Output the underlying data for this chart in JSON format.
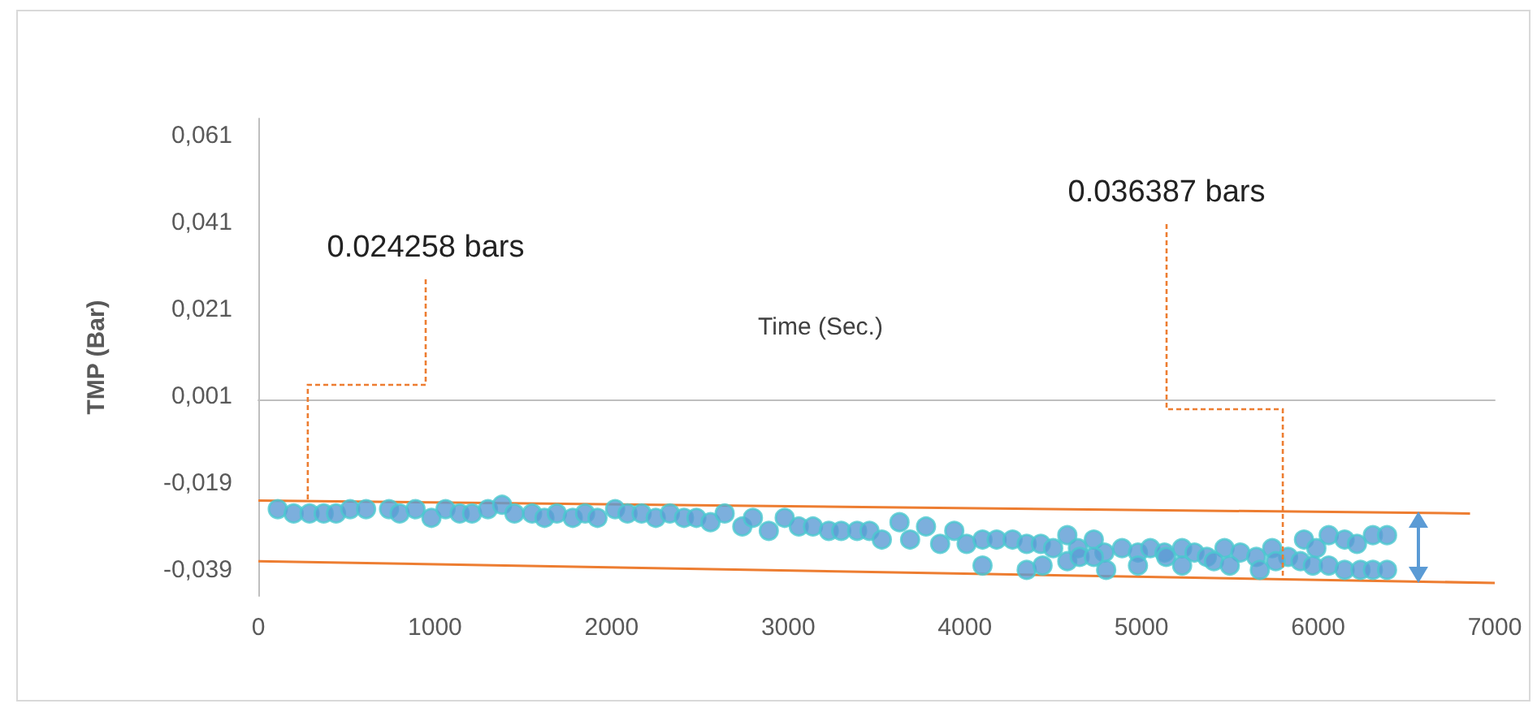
{
  "chart_data": {
    "type": "scatter",
    "xlabel": "Time (Sec.)",
    "ylabel": "TMP (Bar)",
    "xlim": [
      0,
      7000
    ],
    "xticks": [
      0,
      1000,
      2000,
      3000,
      4000,
      5000,
      6000,
      7000
    ],
    "ylim": [
      -0.045,
      0.065
    ],
    "yticks": [
      {
        "value": -0.039,
        "label": "-0,039"
      },
      {
        "value": -0.019,
        "label": "-0,019"
      },
      {
        "value": 0.001,
        "label": "0,001"
      },
      {
        "value": 0.021,
        "label": "0,021"
      },
      {
        "value": 0.041,
        "label": "0,041"
      },
      {
        "value": 0.061,
        "label": "0,061"
      }
    ],
    "grid": false,
    "series": [
      {
        "color": "#5b9bd5",
        "marker": "circle",
        "x": [
          110,
          200,
          290,
          370,
          440,
          520,
          610,
          740,
          800,
          890,
          980,
          1060,
          1140,
          1210,
          1300,
          1380,
          1450,
          1550,
          1620,
          1690,
          1780,
          1850,
          1920,
          2020,
          2090,
          2170,
          2250,
          2330,
          2410,
          2480,
          2560,
          2640,
          2740,
          2800,
          2890,
          2980,
          3060,
          3140,
          3230,
          3300,
          3390,
          3460,
          3530,
          3630,
          3690,
          3780,
          3860,
          3940,
          4010,
          4100,
          4180,
          4270,
          4350,
          4430,
          4500,
          4580,
          4640,
          4730,
          4790,
          4890,
          4980,
          5050,
          5130,
          5230,
          5300,
          5370,
          5470,
          5560,
          5650,
          5740,
          5830,
          5920,
          5990,
          6060,
          6150,
          6220,
          6310,
          6390,
          4100,
          4350,
          4440,
          4580,
          4650,
          4730,
          4800,
          4980,
          5140,
          5230,
          5410,
          5500,
          5670,
          5760,
          5900,
          5970,
          6060,
          6150,
          6240,
          6310,
          6390
        ],
        "values": [
          -0.025,
          -0.026,
          -0.026,
          -0.026,
          -0.026,
          -0.025,
          -0.025,
          -0.025,
          -0.026,
          -0.025,
          -0.027,
          -0.025,
          -0.026,
          -0.026,
          -0.025,
          -0.024,
          -0.026,
          -0.026,
          -0.027,
          -0.026,
          -0.027,
          -0.026,
          -0.027,
          -0.025,
          -0.026,
          -0.026,
          -0.027,
          -0.026,
          -0.027,
          -0.027,
          -0.028,
          -0.026,
          -0.029,
          -0.027,
          -0.03,
          -0.027,
          -0.029,
          -0.029,
          -0.03,
          -0.03,
          -0.03,
          -0.03,
          -0.032,
          -0.028,
          -0.032,
          -0.029,
          -0.033,
          -0.03,
          -0.033,
          -0.032,
          -0.032,
          -0.032,
          -0.033,
          -0.033,
          -0.034,
          -0.031,
          -0.034,
          -0.032,
          -0.035,
          -0.034,
          -0.035,
          -0.034,
          -0.035,
          -0.034,
          -0.035,
          -0.036,
          -0.034,
          -0.035,
          -0.036,
          -0.034,
          -0.036,
          -0.032,
          -0.034,
          -0.031,
          -0.032,
          -0.033,
          -0.031,
          -0.031,
          -0.038,
          -0.039,
          -0.038,
          -0.037,
          -0.036,
          -0.036,
          -0.039,
          -0.038,
          -0.036,
          -0.038,
          -0.037,
          -0.038,
          -0.039,
          -0.037,
          -0.037,
          -0.038,
          -0.038,
          -0.039,
          -0.039,
          -0.039,
          -0.039
        ]
      },
      {
        "type": "line",
        "color": "#ed7d31",
        "marker": "none",
        "line_style": "solid",
        "x": [
          0,
          6860
        ],
        "values": [
          -0.023,
          -0.026
        ]
      },
      {
        "type": "line",
        "color": "#ed7d31",
        "marker": "none",
        "line_style": "solid",
        "x": [
          0,
          7000
        ],
        "values": [
          -0.037,
          -0.042
        ]
      }
    ],
    "annotations": [
      {
        "text": "0.024258 bars",
        "x": 280,
        "y": -0.023
      },
      {
        "text": "0.036387 bars",
        "x": 5800,
        "y": -0.041
      }
    ]
  }
}
